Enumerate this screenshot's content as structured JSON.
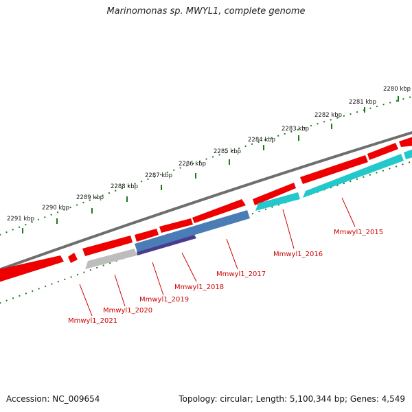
{
  "title": "Marinomonas sp. MWYL1, complete genome",
  "footer": {
    "accession": "Accession: NC_009654",
    "summary": "Topology: circular; Length: 5,100,344 bp; Genes: 4,549"
  },
  "colors": {
    "backbone": "#6e6e6e",
    "gene_forward": "#ee0000",
    "gene_cyan": "#22c8cc",
    "gene_blue": "#4a7db5",
    "gene_gray": "#bdbdbd",
    "gene_purple": "#4b3b8f",
    "tick_dots": "#1a7a1a",
    "label": "#cc0000"
  },
  "kbp_labels": [
    "2280 kbp",
    "2281 kbp",
    "2282 kbp",
    "2283 kbp",
    "2284 kbp",
    "2285 kbp",
    "2286 kbp",
    "2287 kbp",
    "2288 kbp",
    "2289 kbp",
    "2290 kbp",
    "2291 kbp"
  ],
  "gene_labels": [
    "Mmwyl1_2015",
    "Mmwyl1_2016",
    "Mmwyl1_2017",
    "Mmwyl1_2018",
    "Mmwyl1_2019",
    "Mmwyl1_2020",
    "Mmwyl1_2021"
  ]
}
